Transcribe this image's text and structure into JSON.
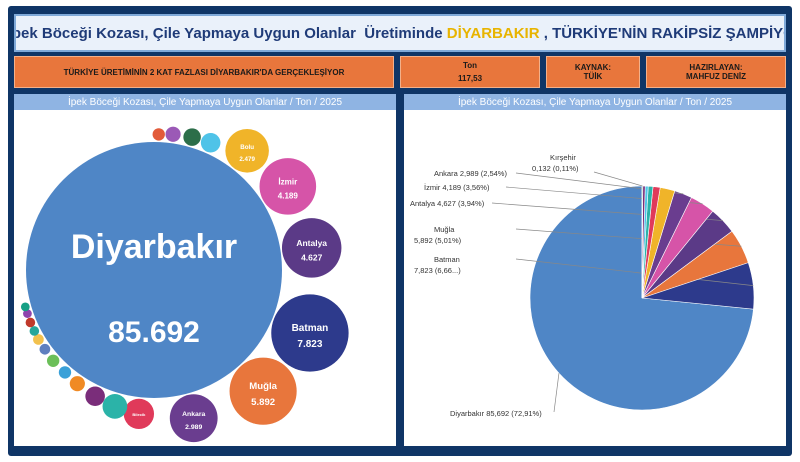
{
  "header": {
    "year": "2025",
    "text_before": " İpek Böceği Kozası, Çile Yapmaya Uygun Olanlar  Üretiminde ",
    "city": "DİYARBAKIR",
    "text_after": " , TÜRKİYE'NİN RAKİPSİZ ŞAMPİYONU!.."
  },
  "kpis": {
    "banner": "TÜRKİYE ÜRETİMİNİN 2 KAT FAZLASI DİYARBAKIR'DA GERÇEKLEŞİYOR",
    "ton_label": "Ton",
    "ton_value": "117,53",
    "source_label": "KAYNAK:",
    "source_value": "TÜİK",
    "author_label": "HAZIRLAYAN:",
    "author_value": "MAHFUZ DENİZ"
  },
  "panels": {
    "bubble_title": "İpek Böceği Kozası, Çile Yapmaya Uygun Olanlar / Ton / 2025",
    "pie_title": "İpek Böceği Kozası, Çile Yapmaya Uygun Olanlar / Ton / 2025"
  },
  "colors": {
    "frame": "#0f3566",
    "accent_orange": "#e8763c",
    "header_blue": "#8fb4e3",
    "highlight": "#e8b400"
  },
  "chart_data": [
    {
      "type": "bubble",
      "title": "İpek Böceği Kozası, Çile Yapmaya Uygun Olanlar / Ton / 2025",
      "bubbles": [
        {
          "name": "Diyarbakır",
          "label": "85.692",
          "value": 85.692,
          "color": "#4f86c6"
        },
        {
          "name": "Batman",
          "label": "7.823",
          "value": 7.823,
          "color": "#2d3a8c"
        },
        {
          "name": "Muğla",
          "label": "5.892",
          "value": 5.892,
          "color": "#e8763c"
        },
        {
          "name": "Antalya",
          "label": "4.627",
          "value": 4.627,
          "color": "#5b3a87"
        },
        {
          "name": "İzmir",
          "label": "4.189",
          "value": 4.189,
          "color": "#d654a8"
        },
        {
          "name": "Ankara",
          "label": "2.989",
          "value": 2.989,
          "color": "#6a3d8f"
        },
        {
          "name": "Bolu",
          "label": "2.479",
          "value": 2.479,
          "color": "#f0b429"
        },
        {
          "name": "Bilecik",
          "label": "",
          "value": 1.2,
          "color": "#e03a5a"
        },
        {
          "name": "",
          "label": "",
          "value": 0.8,
          "color": "#2bb3a8"
        },
        {
          "name": "",
          "label": "",
          "value": 0.5,
          "color": "#4fc3e8"
        },
        {
          "name": "",
          "label": "",
          "value": 0.5,
          "color": "#7a2d7a"
        },
        {
          "name": "",
          "label": "",
          "value": 0.4,
          "color": "#2c6e49"
        },
        {
          "name": "",
          "label": "",
          "value": 0.3,
          "color": "#f08a24"
        },
        {
          "name": "",
          "label": "",
          "value": 0.3,
          "color": "#9b59b6"
        },
        {
          "name": "",
          "label": "",
          "value": 0.2,
          "color": "#3aa0d8"
        },
        {
          "name": "",
          "label": "",
          "value": 0.2,
          "color": "#6bbf59"
        },
        {
          "name": "",
          "label": "",
          "value": 0.2,
          "color": "#e25b3a"
        },
        {
          "name": "",
          "label": "",
          "value": 0.15,
          "color": "#5e7fbf"
        },
        {
          "name": "",
          "label": "",
          "value": 0.15,
          "color": "#f2c14e"
        },
        {
          "name": "",
          "label": "",
          "value": 0.12,
          "color": "#26a69a"
        },
        {
          "name": "",
          "label": "",
          "value": 0.12,
          "color": "#c0392b"
        },
        {
          "name": "",
          "label": "",
          "value": 0.1,
          "color": "#8e44ad"
        },
        {
          "name": "",
          "label": "",
          "value": 0.1,
          "color": "#16a085"
        }
      ]
    },
    {
      "type": "pie",
      "title": "İpek Böceği Kozası, Çile Yapmaya Uygun Olanlar / Ton / 2025",
      "slices": [
        {
          "name": "Diyarbakır",
          "value": 85.692,
          "label": "Diyarbakır 85,692 (72,91%)",
          "color": "#4f86c6"
        },
        {
          "name": "Batman",
          "value": 7.823,
          "label1": "Batman",
          "label2": "7,823 (6,66...)",
          "color": "#2d3a8c"
        },
        {
          "name": "Muğla",
          "value": 5.892,
          "label1": "Muğla",
          "label2": "5,892 (5,01%)",
          "color": "#e8763c"
        },
        {
          "name": "Antalya",
          "value": 4.627,
          "label": "Antalya 4,627 (3,94%)",
          "color": "#5b3a87"
        },
        {
          "name": "İzmir",
          "value": 4.189,
          "label": "İzmir 4,189 (3,56%)",
          "color": "#d654a8"
        },
        {
          "name": "Ankara",
          "value": 2.989,
          "label": "Ankara 2,989 (2,54%)",
          "color": "#6a3d8f"
        },
        {
          "name": "Bolu",
          "value": 2.479,
          "color": "#f0b429"
        },
        {
          "name": "Bilecik",
          "value": 1.2,
          "color": "#e03a5a"
        },
        {
          "name": "",
          "value": 0.8,
          "color": "#2bb3a8"
        },
        {
          "name": "",
          "value": 0.5,
          "color": "#4fc3e8"
        },
        {
          "name": "",
          "value": 0.4,
          "color": "#7a2d7a"
        },
        {
          "name": "Kırşehir",
          "value": 0.132,
          "label1": "Kırşehir",
          "label2": "0,132 (0,11%)",
          "color": "#2c6e49"
        }
      ]
    }
  ]
}
